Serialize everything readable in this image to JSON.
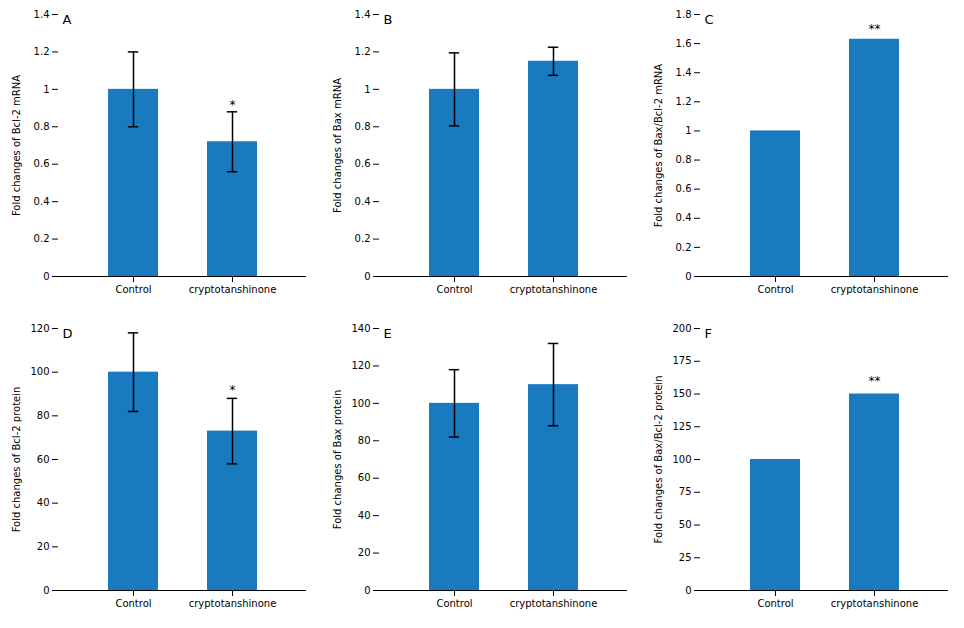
{
  "chart_data": [
    {
      "type": "bar",
      "title": "A",
      "ylabel": "Fold changes of Bcl-2 mRNA",
      "categories": [
        "Control",
        "cryptotanshinone"
      ],
      "values": [
        1.0,
        0.72
      ],
      "errors": [
        0.2,
        0.16
      ],
      "ylim": [
        0,
        1.4
      ],
      "yticks": [
        0,
        0.2,
        0.4,
        0.6,
        0.8,
        1,
        1.2,
        1.4
      ],
      "color": "#1a7abf",
      "grid": false,
      "annotations": [
        {
          "text": "*",
          "x": "cryptotanshinone",
          "y": 0.895
        }
      ]
    },
    {
      "type": "bar",
      "title": "B",
      "ylabel": "Fold changes of Bax mRNA",
      "categories": [
        "Control",
        "cryptotanshinone"
      ],
      "values": [
        1.0,
        1.15
      ],
      "errors": [
        0.195,
        0.075
      ],
      "ylim": [
        0,
        1.4
      ],
      "yticks": [
        0,
        0.2,
        0.4,
        0.6,
        0.8,
        1,
        1.2,
        1.4
      ],
      "color": "#1a7abf",
      "grid": false
    },
    {
      "type": "bar",
      "title": "C",
      "ylabel": "Fold changes of Bax/Bcl-2 mRNA",
      "categories": [
        "Control",
        "cryptotanshinone"
      ],
      "values": [
        1.0,
        1.63
      ],
      "errors": [
        0.0,
        0.0
      ],
      "ylim": [
        0,
        1.8
      ],
      "yticks": [
        0,
        0.2,
        0.4,
        0.6,
        0.8,
        1,
        1.2,
        1.4,
        1.6,
        1.8
      ],
      "color": "#1a7abf",
      "grid": false,
      "annotations": [
        {
          "text": "**",
          "x": "cryptotanshinone",
          "y": 1.67
        }
      ]
    },
    {
      "type": "bar",
      "title": "D",
      "ylabel": "Fold changes of Bcl-2 protein",
      "categories": [
        "Control",
        "cryptotanshinone"
      ],
      "values": [
        100,
        73
      ],
      "errors": [
        18,
        15
      ],
      "ylim": [
        0,
        120
      ],
      "yticks": [
        0,
        20,
        40,
        60,
        80,
        100,
        120
      ],
      "color": "#1a7abf",
      "grid": false,
      "annotations": [
        {
          "text": "*",
          "x": "cryptotanshinone",
          "y": 90
        }
      ]
    },
    {
      "type": "bar",
      "title": "E",
      "ylabel": "Fold changes of Bax protein",
      "categories": [
        "Control",
        "cryptotanshinone"
      ],
      "values": [
        100,
        110
      ],
      "errors": [
        18,
        22
      ],
      "ylim": [
        0,
        140
      ],
      "yticks": [
        0,
        20,
        40,
        60,
        80,
        100,
        120,
        140
      ],
      "color": "#1a7abf",
      "grid": false
    },
    {
      "type": "bar",
      "title": "F",
      "ylabel": "Fold changes of Bax/Bcl-2 protein",
      "categories": [
        "Control",
        "cryptotanshinone"
      ],
      "values": [
        100,
        150
      ],
      "errors": [
        0,
        0
      ],
      "ylim": [
        0,
        200
      ],
      "yticks": [
        0,
        25,
        50,
        75,
        100,
        125,
        150,
        175,
        200
      ],
      "color": "#1a7abf",
      "grid": false,
      "annotations": [
        {
          "text": "**",
          "x": "cryptotanshinone",
          "y": 157
        }
      ]
    }
  ]
}
